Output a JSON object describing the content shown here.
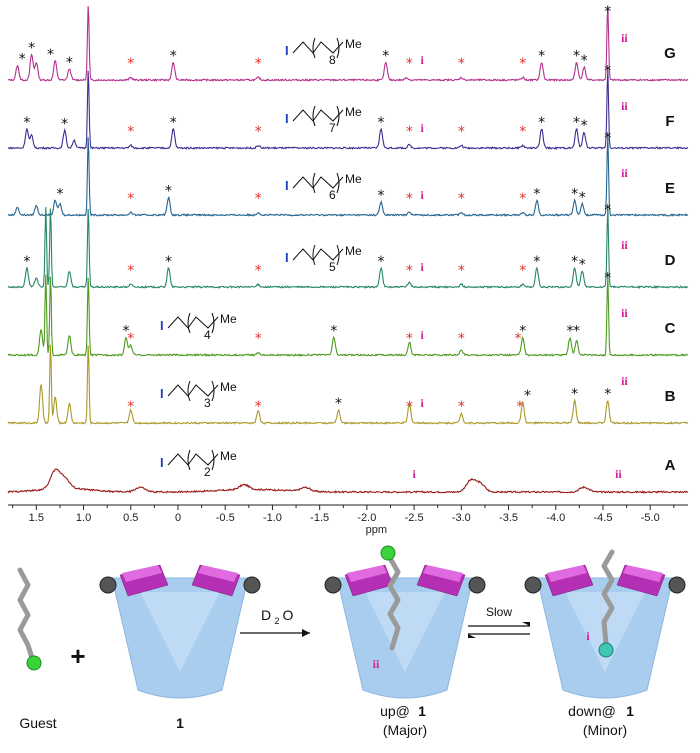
{
  "chart_data": {
    "type": "line",
    "xlabel": "ppm",
    "xlim": [
      1.8,
      -5.4
    ],
    "x_ticks": [
      "1.5",
      "1.0",
      "0.5",
      "0",
      "-0.5",
      "-1.0",
      "-1.5",
      "-2.0",
      "-2.5",
      "-3.0",
      "-3.5",
      "-4.0",
      "-4.5",
      "-5.0"
    ],
    "series": [
      {
        "name": "G",
        "color": "#b5308f",
        "n": 8,
        "peaks": [
          [
            1.7,
            0.45
          ],
          [
            1.55,
            0.8
          ],
          [
            1.5,
            0.55
          ],
          [
            1.3,
            0.6
          ],
          [
            1.15,
            0.35
          ],
          [
            0.95,
            2.5
          ],
          [
            0.05,
            0.55
          ],
          [
            -2.2,
            0.55
          ],
          [
            -2.42,
            0.08
          ],
          [
            -3.85,
            0.55
          ],
          [
            -4.22,
            0.55
          ],
          [
            -4.3,
            0.4
          ],
          [
            -4.55,
            2.5
          ],
          [
            0.5,
            0.08
          ],
          [
            -0.85,
            0.08
          ],
          [
            -3.0,
            0.08
          ],
          [
            -3.65,
            0.08
          ]
        ],
        "black_stars": [
          1.65,
          1.55,
          1.35,
          1.15,
          0.05,
          -2.2,
          -3.85,
          -4.22,
          -4.3,
          -4.55
        ],
        "red_stars": [
          0.5,
          -0.85,
          -2.45,
          -3.0,
          -3.65
        ],
        "i_pos": -2.5,
        "ii_pos": -4.6
      },
      {
        "name": "F",
        "color": "#3b2e8f",
        "n": 7,
        "peaks": [
          [
            1.6,
            0.6
          ],
          [
            1.55,
            0.4
          ],
          [
            1.2,
            0.55
          ],
          [
            1.1,
            0.25
          ],
          [
            0.95,
            2.5
          ],
          [
            0.05,
            0.6
          ],
          [
            -2.15,
            0.6
          ],
          [
            -2.45,
            0.1
          ],
          [
            -3.85,
            0.6
          ],
          [
            -4.22,
            0.6
          ],
          [
            -4.3,
            0.5
          ],
          [
            -4.55,
            2.5
          ],
          [
            0.5,
            0.08
          ],
          [
            -0.85,
            0.08
          ],
          [
            -3.0,
            0.08
          ],
          [
            -3.65,
            0.08
          ]
        ],
        "black_stars": [
          1.6,
          1.2,
          0.05,
          -2.15,
          -3.85,
          -4.22,
          -4.3,
          -4.55
        ],
        "red_stars": [
          0.5,
          -0.85,
          -2.45,
          -3.0,
          -3.65
        ],
        "i_pos": -2.5,
        "ii_pos": -4.6
      },
      {
        "name": "E",
        "color": "#23658f",
        "n": 6,
        "peaks": [
          [
            1.7,
            0.25
          ],
          [
            1.5,
            0.3
          ],
          [
            1.3,
            0.45
          ],
          [
            1.25,
            0.35
          ],
          [
            0.95,
            2.5
          ],
          [
            0.1,
            0.55
          ],
          [
            -2.15,
            0.4
          ],
          [
            -2.45,
            0.1
          ],
          [
            -3.8,
            0.45
          ],
          [
            -4.2,
            0.45
          ],
          [
            -4.28,
            0.35
          ],
          [
            -4.55,
            2.5
          ],
          [
            0.5,
            0.08
          ],
          [
            -0.85,
            0.08
          ],
          [
            -3.0,
            0.08
          ],
          [
            -3.65,
            0.08
          ]
        ],
        "black_stars": [
          1.25,
          0.1,
          -2.15,
          -3.8,
          -4.2,
          -4.28,
          -4.55
        ],
        "red_stars": [
          0.5,
          -0.85,
          -2.45,
          -3.0,
          -3.65
        ],
        "i_pos": -2.5,
        "ii_pos": -4.6
      },
      {
        "name": "D",
        "color": "#25866a",
        "n": 5,
        "peaks": [
          [
            1.6,
            0.6
          ],
          [
            1.5,
            0.3
          ],
          [
            1.4,
            2.5
          ],
          [
            1.35,
            2.5
          ],
          [
            1.15,
            0.5
          ],
          [
            0.95,
            2.5
          ],
          [
            0.1,
            0.6
          ],
          [
            -2.15,
            0.6
          ],
          [
            -2.45,
            0.15
          ],
          [
            -3.8,
            0.6
          ],
          [
            -4.2,
            0.6
          ],
          [
            -4.28,
            0.5
          ],
          [
            -4.55,
            2.5
          ],
          [
            0.5,
            0.08
          ],
          [
            -0.85,
            0.08
          ],
          [
            -3.0,
            0.08
          ],
          [
            -3.65,
            0.08
          ]
        ],
        "black_stars": [
          1.6,
          0.1,
          -2.15,
          -3.8,
          -4.2,
          -4.28,
          -4.55
        ],
        "red_stars": [
          0.5,
          -0.85,
          -2.45,
          -3.0,
          -3.65
        ],
        "i_pos": -2.5,
        "ii_pos": -4.6
      },
      {
        "name": "C",
        "color": "#4c9a1e",
        "n": 4,
        "peaks": [
          [
            1.45,
            0.8
          ],
          [
            1.4,
            2.5
          ],
          [
            1.35,
            2.5
          ],
          [
            1.15,
            0.6
          ],
          [
            0.95,
            2.5
          ],
          [
            0.55,
            0.55
          ],
          [
            0.5,
            0.3
          ],
          [
            -1.65,
            0.55
          ],
          [
            -2.45,
            0.4
          ],
          [
            -3.65,
            0.55
          ],
          [
            -4.15,
            0.55
          ],
          [
            -4.22,
            0.45
          ],
          [
            -4.55,
            2.5
          ],
          [
            -0.85,
            0.08
          ],
          [
            -3.0,
            0.15
          ]
        ],
        "black_stars": [
          0.55,
          -1.65,
          -3.65,
          -4.15,
          -4.22,
          -4.55
        ],
        "red_stars": [
          0.5,
          -0.85,
          -2.45,
          -3.0,
          -3.6
        ],
        "i_pos": -2.5,
        "ii_pos": -4.6
      },
      {
        "name": "B",
        "color": "#a99a2a",
        "n": 3,
        "peaks": [
          [
            1.45,
            1.2
          ],
          [
            1.35,
            2.5
          ],
          [
            1.3,
            0.8
          ],
          [
            1.15,
            0.6
          ],
          [
            0.95,
            2.5
          ],
          [
            0.5,
            0.4
          ],
          [
            -0.85,
            0.4
          ],
          [
            -1.7,
            0.4
          ],
          [
            -2.45,
            0.6
          ],
          [
            -3.0,
            0.3
          ],
          [
            -3.65,
            0.65
          ],
          [
            -4.2,
            0.7
          ],
          [
            -4.55,
            0.7
          ]
        ],
        "black_stars": [
          -1.7,
          -3.7,
          -4.2,
          -4.55
        ],
        "red_stars": [
          0.5,
          -0.85,
          -2.45,
          -3.0,
          -3.62
        ],
        "i_pos": -2.5,
        "ii_pos": -4.6
      },
      {
        "name": "A",
        "color": "#991b1b",
        "n": 2,
        "peaks": [
          [
            1.3,
            0.55
          ],
          [
            1.2,
            0.3
          ],
          [
            0.4,
            0.15
          ],
          [
            -0.7,
            0.15
          ],
          [
            -1.35,
            0.12
          ],
          [
            -3.1,
            0.35
          ],
          [
            -3.2,
            0.25
          ],
          [
            -4.3,
            0.15
          ]
        ],
        "black_stars": [],
        "red_stars": [],
        "i_pos": -2.5,
        "ii_pos": -4.6
      }
    ]
  },
  "labels": {
    "xlabel": "ppm",
    "i": "i",
    "ii": "ii",
    "me": "Me",
    "iodine": "I",
    "d2o": "D",
    "d2o_sub": "2",
    "d2o_tail": "O",
    "slow": "Slow"
  },
  "bottom": {
    "guest": "Guest",
    "host": "1",
    "up_prefix": "up@",
    "up_suffix": "1",
    "up_note": "(Major)",
    "down_prefix": "down@",
    "down_suffix": "1",
    "down_note": "(Minor)",
    "plus": "+"
  },
  "colors": {
    "black_star": "#111111",
    "red_star": "#e03030",
    "roman": "#d61f9a",
    "cup_body": "#a9cdee",
    "cup_rim": "#b42fb3",
    "cup_rim_light": "#e06be0"
  }
}
